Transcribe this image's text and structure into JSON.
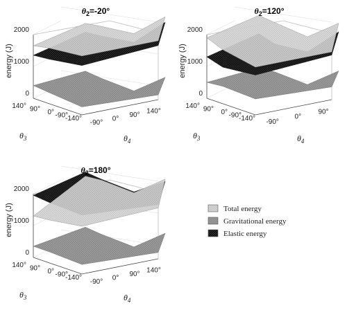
{
  "legend": [
    {
      "key": "total",
      "label": "Total energy",
      "color": "#c8c8c8"
    },
    {
      "key": "grav",
      "label": "Gravitational energy",
      "color": "#7a7a7a"
    },
    {
      "key": "elastic",
      "label": "Elastic energy",
      "color": "#1a1a1a"
    }
  ],
  "chart_data": [
    {
      "type": "surface",
      "title_symbol": "θ",
      "title_sub": "2",
      "title_value": "=-20°",
      "zlabel": "energy (J)",
      "xlabel_symbol": "θ",
      "xlabel_sub": "4",
      "ylabel_symbol": "θ",
      "ylabel_sub": "3",
      "zticks": [
        "2000",
        "1000",
        "0"
      ],
      "zlim": [
        0,
        2000
      ],
      "theta4_ticks": [
        "-90°",
        "0°",
        "90°",
        "140°"
      ],
      "theta3_ticks": [
        "140°",
        "90°",
        "0°",
        "-90°",
        "-140°"
      ],
      "surfaces": {
        "total": {
          "front": [
            1650,
            1750,
            1850,
            1850
          ],
          "back": [
            1700,
            1780,
            1900,
            1950
          ]
        },
        "grav": {
          "front": [
            400,
            350,
            250,
            150
          ],
          "back": [
            200,
            150,
            100,
            50
          ]
        },
        "elastic_band": [
          1350,
          1400,
          1550,
          1700
        ]
      }
    },
    {
      "type": "surface",
      "title_symbol": "θ",
      "title_sub": "2",
      "title_value": "=120°",
      "zlabel": "energy (J)",
      "xlabel_symbol": "θ",
      "xlabel_sub": "4",
      "ylabel_symbol": "θ",
      "ylabel_sub": "3",
      "zticks": [
        "2000",
        "1000",
        "0"
      ],
      "zlim": [
        0,
        2000
      ],
      "theta4_ticks": [
        "-90°",
        "0°",
        "90°"
      ],
      "theta3_ticks": [
        "140°",
        "90°",
        "0°",
        "-90°",
        "-140°"
      ],
      "surfaces": {
        "total": {
          "front": [
            1900,
            1700,
            1500,
            1500
          ],
          "back": [
            1950,
            1900,
            1800,
            1750
          ]
        },
        "grav": {
          "front": [
            500,
            550,
            500,
            400
          ],
          "back": [
            300,
            350,
            300,
            250
          ]
        },
        "elastic_band": [
          1300,
          1150,
          1250,
          1400
        ]
      }
    },
    {
      "type": "surface",
      "title_symbol": "θ",
      "title_sub": "2",
      "title_value": "=180°",
      "zlabel": "energy (J)",
      "xlabel_symbol": "θ",
      "xlabel_sub": "4",
      "ylabel_symbol": "θ",
      "ylabel_sub": "3",
      "zticks": [
        "2000",
        "1000",
        "0"
      ],
      "zlim": [
        0,
        2000
      ],
      "theta4_ticks": [
        "-90°",
        "0°",
        "90°",
        "140°"
      ],
      "theta3_ticks": [
        "140°",
        "90°",
        "0°",
        "-90°",
        "-140°"
      ],
      "surfaces": {
        "total": {
          "front": [
            1300,
            1350,
            1500,
            1600
          ],
          "back": [
            1900,
            1950,
            1900,
            1850
          ]
        },
        "grav": {
          "front": [
            350,
            350,
            300,
            200
          ],
          "back": [
            300,
            250,
            200,
            150
          ]
        },
        "elastic_band": [
          1950,
          1900,
          1850,
          1700
        ]
      }
    }
  ]
}
